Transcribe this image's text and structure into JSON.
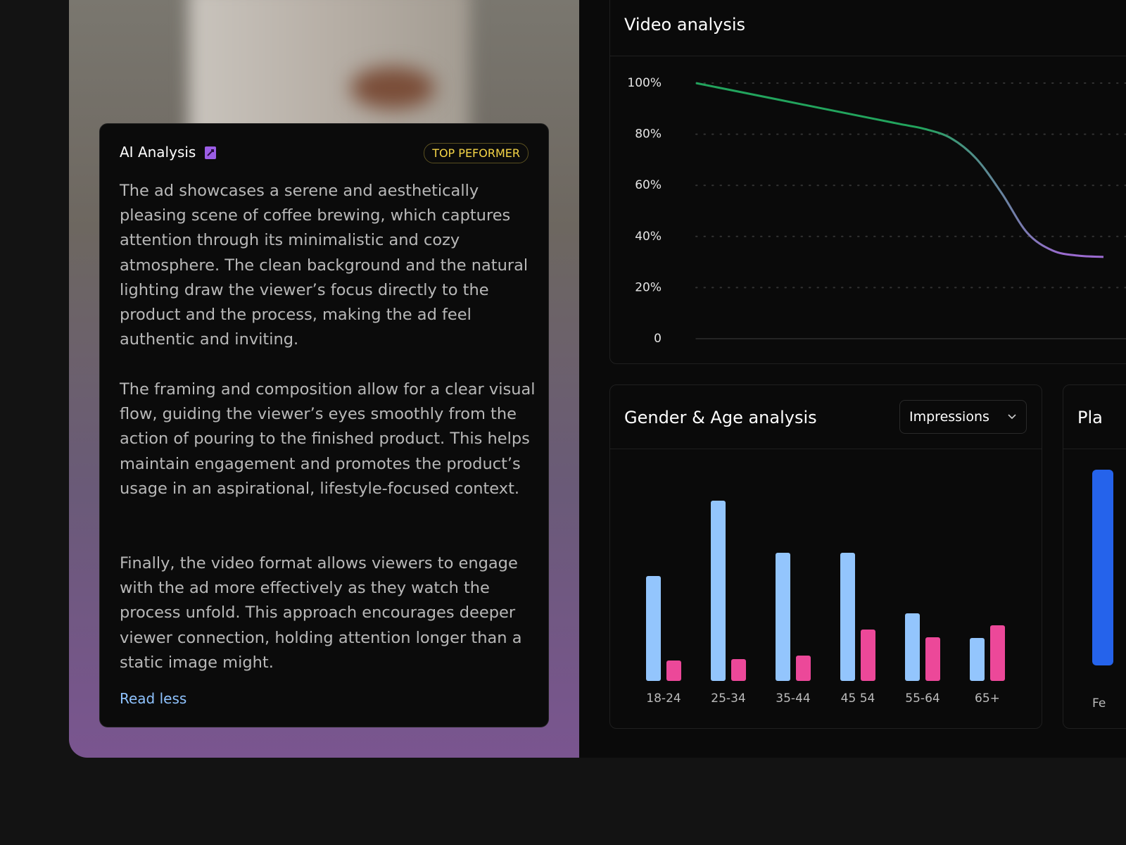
{
  "ai_analysis": {
    "title": "AI Analysis",
    "badge": "TOP PEFORMER",
    "paragraphs": [
      "The ad showcases a serene and aesthetically pleasing scene of coffee brewing, which captures attention through its minimalistic and cozy atmosphere. The clean background and the natural lighting draw the viewer’s focus directly to the product and the process, making the ad feel authentic and inviting.",
      "The framing and composition allow for a clear visual flow, guiding the viewer’s eyes smoothly from the action of pouring to the finished product. This helps maintain engagement and promotes the product’s usage in an aspirational, lifestyle-focused context.",
      "Finally, the video format allows viewers to engage with the ad more effectively as they watch the process unfold. This approach encourages deeper viewer connection, holding attention longer than a static image might."
    ],
    "link": "Read less"
  },
  "video_analysis": {
    "type": "line",
    "title": "Video analysis",
    "values": [
      100,
      98,
      96,
      94,
      92,
      90,
      88,
      86,
      84,
      82,
      78.5,
      70.5,
      57,
      41.5,
      34.5,
      32.5,
      32
    ],
    "colors": [
      "#22a45d",
      "#9b6bd0"
    ],
    "ylim": [
      0,
      100
    ],
    "yticks": [
      {
        "value": 100,
        "label": "100%"
      },
      {
        "value": 80,
        "label": "80%"
      },
      {
        "value": 60,
        "label": "60%"
      },
      {
        "value": 40,
        "label": "40%"
      },
      {
        "value": 20,
        "label": "20%"
      },
      0
    ],
    "grid": true
  },
  "gender_age": {
    "type": "bar",
    "title": "Gender & Age analysis",
    "dropdown": "Impressions",
    "categories": [
      "18-24",
      "25-34",
      "35-44",
      "45 54",
      "55-64",
      "65+"
    ],
    "series": [
      {
        "color": "#93c5fd",
        "values": [
          149,
          256,
          182,
          182,
          96,
          61
        ]
      },
      {
        "color": "#ec4899",
        "values": [
          29,
          31,
          36,
          73,
          62,
          79
        ]
      }
    ],
    "ylim": [
      0,
      300
    ]
  },
  "platform": {
    "type": "bar",
    "title": "Pla",
    "categories": [
      "Fe"
    ],
    "values": [
      278
    ],
    "color": "#2563eb",
    "ylim": [
      0,
      300
    ]
  }
}
